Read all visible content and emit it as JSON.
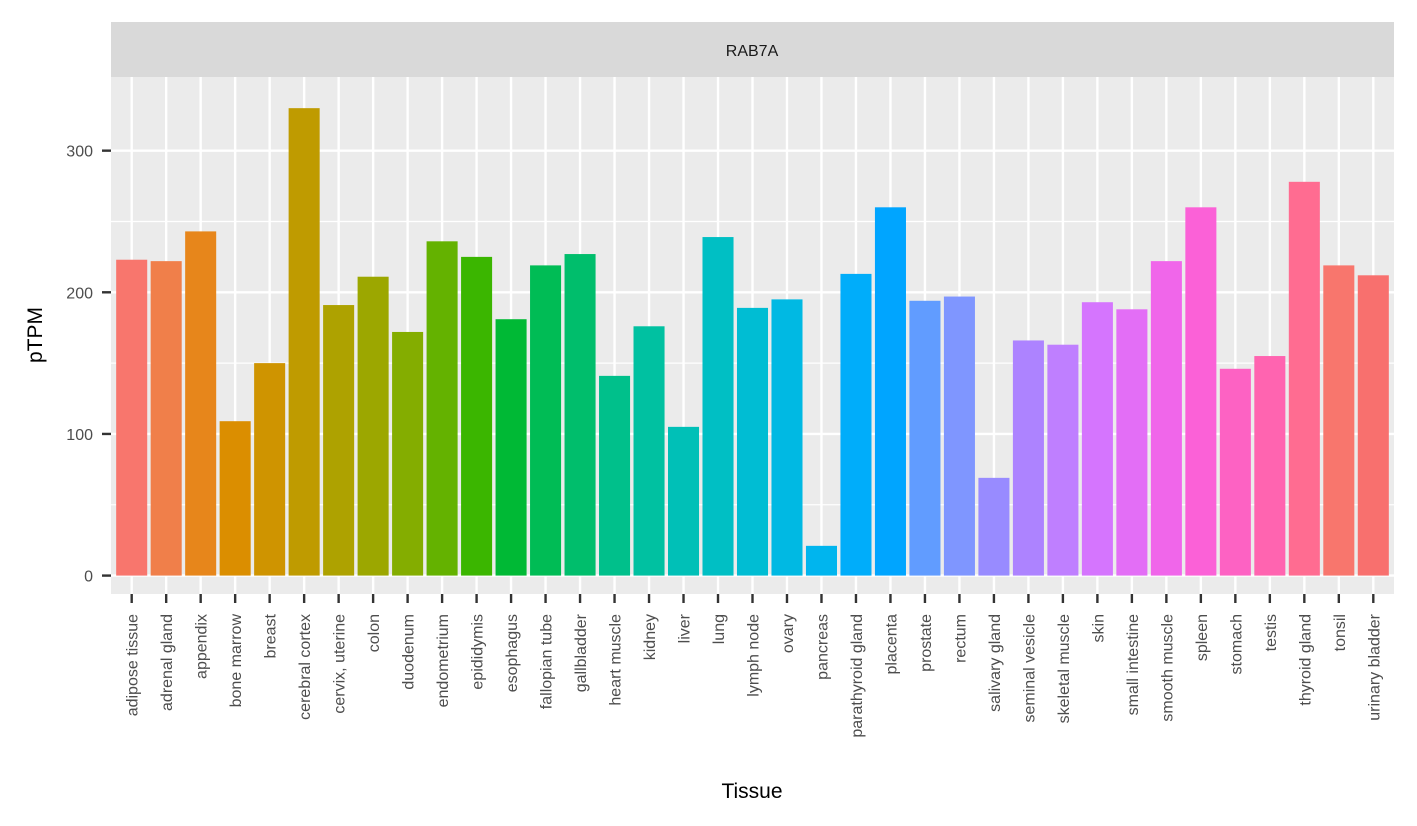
{
  "chart_data": {
    "type": "bar",
    "facet_label": "RAB7A",
    "xlabel": "Tissue",
    "ylabel": "pTPM",
    "ylim": [
      -13,
      352
    ],
    "yticks": [
      0,
      100,
      200,
      300
    ],
    "grid": true,
    "legend": "none",
    "categories": [
      "adipose tissue",
      "adrenal gland",
      "appendix",
      "bone marrow",
      "breast",
      "cerebral cortex",
      "cervix, uterine",
      "colon",
      "duodenum",
      "endometrium",
      "epididymis",
      "esophagus",
      "fallopian tube",
      "gallbladder",
      "heart muscle",
      "kidney",
      "liver",
      "lung",
      "lymph node",
      "ovary",
      "pancreas",
      "parathyroid gland",
      "placenta",
      "prostate",
      "rectum",
      "salivary gland",
      "seminal vesicle",
      "skeletal muscle",
      "skin",
      "small intestine",
      "smooth muscle",
      "spleen",
      "stomach",
      "testis",
      "thyroid gland",
      "tonsil",
      "urinary bladder"
    ],
    "values": [
      223,
      222,
      243,
      109,
      150,
      330,
      191,
      211,
      172,
      236,
      225,
      181,
      219,
      227,
      141,
      176,
      105,
      239,
      189,
      195,
      21,
      213,
      260,
      194,
      197,
      69,
      166,
      163,
      193,
      188,
      222,
      260,
      146,
      155,
      278,
      219,
      212
    ],
    "colors": [
      "#F8766D",
      "#F07F4A",
      "#E7861B",
      "#DB8E00",
      "#CF9400",
      "#BF9B00",
      "#AEA200",
      "#9CA700",
      "#84AD00",
      "#64B200",
      "#3BB600",
      "#00B935",
      "#00BC55",
      "#00BE6C",
      "#00C08B",
      "#00C1A1",
      "#00C0B7",
      "#00BFC4",
      "#00BDD3",
      "#00B9E3",
      "#00B5EE",
      "#00ADFA",
      "#00A5FF",
      "#619CFF",
      "#7F96FF",
      "#988BFF",
      "#AD83FF",
      "#BF7FFF",
      "#D575FE",
      "#E36EF6",
      "#F066EA",
      "#FB61D7",
      "#FD62C3",
      "#FF64B0",
      "#FF6C91",
      "#F8766D",
      "#F8706E"
    ]
  }
}
